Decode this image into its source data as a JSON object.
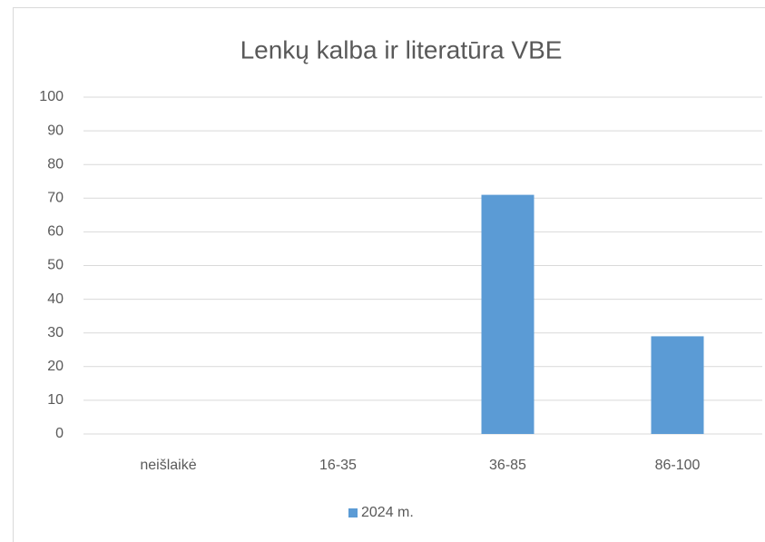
{
  "chart_data": {
    "type": "bar",
    "title": "Lenkų kalba ir literatūra VBE",
    "categories": [
      "neišlaikė",
      "16-35",
      "36-85",
      "86-100"
    ],
    "series": [
      {
        "name": "2024 m.",
        "color": "#5b9bd5",
        "values": [
          0,
          0,
          71,
          29
        ]
      }
    ],
    "ylim": [
      0,
      100
    ],
    "yticks": [
      0,
      10,
      20,
      30,
      40,
      50,
      60,
      70,
      80,
      90,
      100
    ],
    "grid": true,
    "legend": "bottom"
  }
}
